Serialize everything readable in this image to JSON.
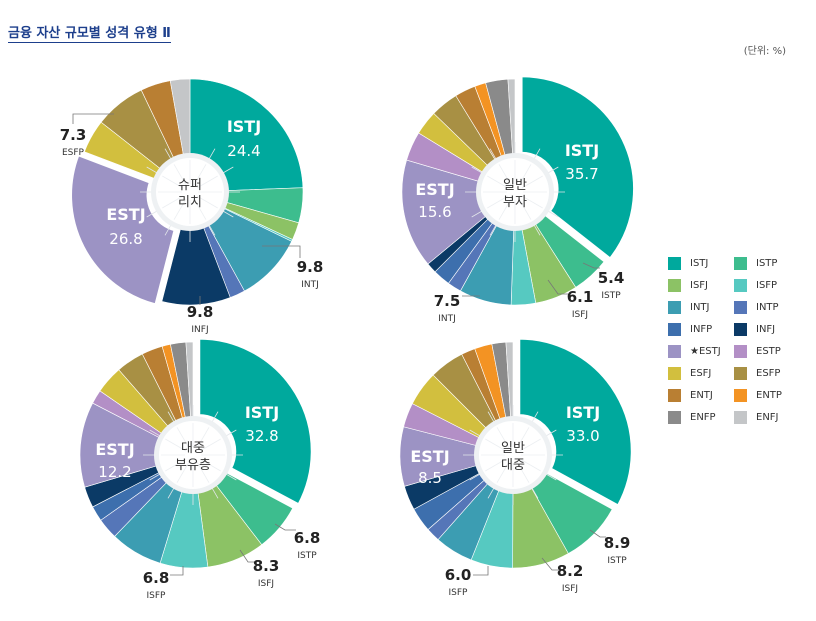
{
  "title": "금융 자산 규모별 성격 유형 Ⅱ",
  "unit": "(단위: %)",
  "colors": {
    "ISTJ": "#00a99d",
    "ISTP": "#3dbd8e",
    "ISFJ": "#8cc265",
    "ISFP": "#56c9c1",
    "INTJ": "#3c9db2",
    "INTP": "#5576b8",
    "INFP": "#3d6fad",
    "INFJ": "#0b3a66",
    "ESTJ": "#9c93c4",
    "ESTP": "#b38fc6",
    "ESFJ": "#d2bf3e",
    "ESFP": "#a89044",
    "ENTJ": "#b97f33",
    "ENTP": "#f39323",
    "ENFP": "#8a8a8a",
    "ENFJ": "#c4c6c8"
  },
  "legend": [
    {
      "label": "ISTJ",
      "key": "ISTJ"
    },
    {
      "label": "ISTP",
      "key": "ISTP"
    },
    {
      "label": "ISFJ",
      "key": "ISFJ"
    },
    {
      "label": "ISFP",
      "key": "ISFP"
    },
    {
      "label": "INTJ",
      "key": "INTJ"
    },
    {
      "label": "INTP",
      "key": "INTP"
    },
    {
      "label": "INFP",
      "key": "INFP"
    },
    {
      "label": "INFJ",
      "key": "INFJ"
    },
    {
      "label": "★ESTJ",
      "key": "ESTJ"
    },
    {
      "label": "ESTP",
      "key": "ESTP"
    },
    {
      "label": "ESFJ",
      "key": "ESFJ"
    },
    {
      "label": "ESFP",
      "key": "ESFP"
    },
    {
      "label": "ENTJ",
      "key": "ENTJ"
    },
    {
      "label": "ENTP",
      "key": "ENTP"
    },
    {
      "label": "ENFP",
      "key": "ENFP"
    },
    {
      "label": "ENFJ",
      "key": "ENFJ"
    }
  ],
  "chart_data": [
    {
      "type": "pie",
      "center_label": [
        "슈퍼",
        "리치"
      ],
      "slices": [
        {
          "type": "ISTJ",
          "value": 24.4
        },
        {
          "type": "ISTP",
          "value": 5.0
        },
        {
          "type": "ISFJ",
          "value": 2.5
        },
        {
          "type": "ISFP",
          "value": 0.3
        },
        {
          "type": "INTJ",
          "value": 9.8
        },
        {
          "type": "INTP",
          "value": 2.2
        },
        {
          "type": "INFJ",
          "value": 9.8
        },
        {
          "type": "ESTJ",
          "value": 26.8
        },
        {
          "type": "ESFJ",
          "value": 4.8
        },
        {
          "type": "ESFP",
          "value": 7.3
        },
        {
          "type": "ENTJ",
          "value": 4.3
        },
        {
          "type": "ENFJ",
          "value": 2.8
        }
      ],
      "labels": [
        {
          "type": "ISTJ",
          "value": "24.4",
          "name": "ISTJ"
        },
        {
          "type": "ESTJ",
          "value": "26.8",
          "name": "ESTJ"
        },
        {
          "type": "INTJ",
          "value": "9.8",
          "name": "INTJ"
        },
        {
          "type": "INFJ",
          "value": "9.8",
          "name": "INFJ"
        },
        {
          "type": "ESFP",
          "value": "7.3",
          "name": "ESFP"
        }
      ]
    },
    {
      "type": "pie",
      "center_label": [
        "일반",
        "부자"
      ],
      "slices": [
        {
          "type": "ISTJ",
          "value": 35.7
        },
        {
          "type": "ISTP",
          "value": 5.4
        },
        {
          "type": "ISFJ",
          "value": 6.1
        },
        {
          "type": "ISFP",
          "value": 3.5
        },
        {
          "type": "INTJ",
          "value": 7.5
        },
        {
          "type": "INTP",
          "value": 2.0
        },
        {
          "type": "INFP",
          "value": 2.5
        },
        {
          "type": "INFJ",
          "value": 1.5
        },
        {
          "type": "ESTJ",
          "value": 15.6
        },
        {
          "type": "ESTP",
          "value": 4.2
        },
        {
          "type": "ESFJ",
          "value": 3.5
        },
        {
          "type": "ESFP",
          "value": 4.0
        },
        {
          "type": "ENTJ",
          "value": 3.0
        },
        {
          "type": "ENTP",
          "value": 1.6
        },
        {
          "type": "ENFP",
          "value": 3.2
        },
        {
          "type": "ENFJ",
          "value": 1.0
        }
      ],
      "labels": [
        {
          "type": "ISTJ",
          "value": "35.7",
          "name": "ISTJ"
        },
        {
          "type": "ESTJ",
          "value": "15.6",
          "name": "ESTJ"
        },
        {
          "type": "ISTP",
          "value": "5.4",
          "name": "ISTP"
        },
        {
          "type": "ISFJ",
          "value": "6.1",
          "name": "ISFJ"
        },
        {
          "type": "INTJ",
          "value": "7.5",
          "name": "INTJ"
        }
      ]
    },
    {
      "type": "pie",
      "center_label": [
        "대중",
        "부유층"
      ],
      "slices": [
        {
          "type": "ISTJ",
          "value": 32.8
        },
        {
          "type": "ISTP",
          "value": 6.8
        },
        {
          "type": "ISFJ",
          "value": 8.3
        },
        {
          "type": "ISFP",
          "value": 6.8
        },
        {
          "type": "INTJ",
          "value": 7.5
        },
        {
          "type": "INTP",
          "value": 3.0
        },
        {
          "type": "INFP",
          "value": 2.2
        },
        {
          "type": "INFJ",
          "value": 3.0
        },
        {
          "type": "ESTJ",
          "value": 12.2
        },
        {
          "type": "ESTP",
          "value": 2.0
        },
        {
          "type": "ESFJ",
          "value": 4.0
        },
        {
          "type": "ESFP",
          "value": 4.0
        },
        {
          "type": "ENTJ",
          "value": 3.0
        },
        {
          "type": "ENTP",
          "value": 1.2
        },
        {
          "type": "ENFP",
          "value": 2.2
        },
        {
          "type": "ENFJ",
          "value": 1.0
        }
      ],
      "labels": [
        {
          "type": "ISTJ",
          "value": "32.8",
          "name": "ISTJ"
        },
        {
          "type": "ESTJ",
          "value": "12.2",
          "name": "ESTJ"
        },
        {
          "type": "ISTP",
          "value": "6.8",
          "name": "ISTP"
        },
        {
          "type": "ISFJ",
          "value": "8.3",
          "name": "ISFJ"
        },
        {
          "type": "ISFP",
          "value": "6.8",
          "name": "ISFP"
        }
      ]
    },
    {
      "type": "pie",
      "center_label": [
        "일반",
        "대중"
      ],
      "slices": [
        {
          "type": "ISTJ",
          "value": 33.0
        },
        {
          "type": "ISTP",
          "value": 8.9
        },
        {
          "type": "ISFJ",
          "value": 8.2
        },
        {
          "type": "ISFP",
          "value": 6.0
        },
        {
          "type": "INTJ",
          "value": 5.5
        },
        {
          "type": "INTP",
          "value": 2.0
        },
        {
          "type": "INFP",
          "value": 3.5
        },
        {
          "type": "INFJ",
          "value": 3.5
        },
        {
          "type": "ESTJ",
          "value": 8.5
        },
        {
          "type": "ESTP",
          "value": 3.5
        },
        {
          "type": "ESFJ",
          "value": 5.0
        },
        {
          "type": "ESFP",
          "value": 5.0
        },
        {
          "type": "ENTJ",
          "value": 2.0
        },
        {
          "type": "ENTP",
          "value": 2.5
        },
        {
          "type": "ENFP",
          "value": 2.0
        },
        {
          "type": "ENFJ",
          "value": 1.0
        }
      ],
      "labels": [
        {
          "type": "ISTJ",
          "value": "33.0",
          "name": "ISTJ"
        },
        {
          "type": "ESTJ",
          "value": "8.5",
          "name": "ESTJ"
        },
        {
          "type": "ISTP",
          "value": "8.9",
          "name": "ISTP"
        },
        {
          "type": "ISFJ",
          "value": "8.2",
          "name": "ISFJ"
        },
        {
          "type": "ISFP",
          "value": "6.0",
          "name": "ISFP"
        }
      ]
    }
  ]
}
